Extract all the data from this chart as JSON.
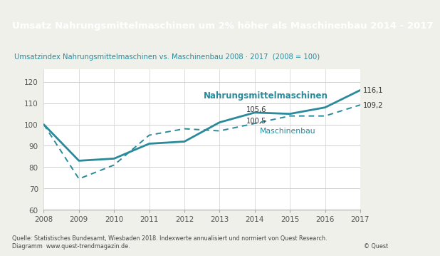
{
  "title": "Umsatz Nahrungsmittelmaschinen um 2% höher als Maschinenbau 2014 - 2017",
  "subtitle": "Umsatzindex Nahrungsmittelmaschinen vs. Maschinenbau 2008 · 2017  (2008 = 100)",
  "years": [
    2008,
    2009,
    2010,
    2011,
    2012,
    2013,
    2014,
    2015,
    2016,
    2017
  ],
  "nahrung": [
    100,
    83,
    84,
    91,
    92,
    101,
    105.6,
    105,
    108,
    116.1
  ],
  "maschinenbau": [
    100,
    74.5,
    81,
    95,
    98,
    97,
    100.5,
    104,
    104,
    109.2
  ],
  "line_color": "#2a8a9a",
  "title_bg_color": "#2a8a9a",
  "title_text_color": "#ffffff",
  "chart_bg_color": "#ffffff",
  "outer_bg_color": "#f0f0eb",
  "subtitle_text_color": "#2a8a9a",
  "grid_color": "#d0d0d0",
  "tick_color": "#555555",
  "ylim": [
    60,
    126
  ],
  "yticks": [
    60,
    70,
    80,
    90,
    100,
    110,
    120
  ],
  "annotation_nahrung_2014": "105,6",
  "annotation_nahrung_2017": "116,1",
  "annotation_masch_2014": "100,5",
  "annotation_masch_2017": "109,2",
  "label_nahrung": "Nahrungsmittelmaschinen",
  "label_maschinenbau": "Maschinenbau",
  "source_text": "Quelle: Statistisches Bundesamt, Wiesbaden 2018. Indexwerte annualisiert und normiert von Quest Research.\nDiagramm  www.quest-trendmagazin.de.",
  "copyright": "© Quest"
}
